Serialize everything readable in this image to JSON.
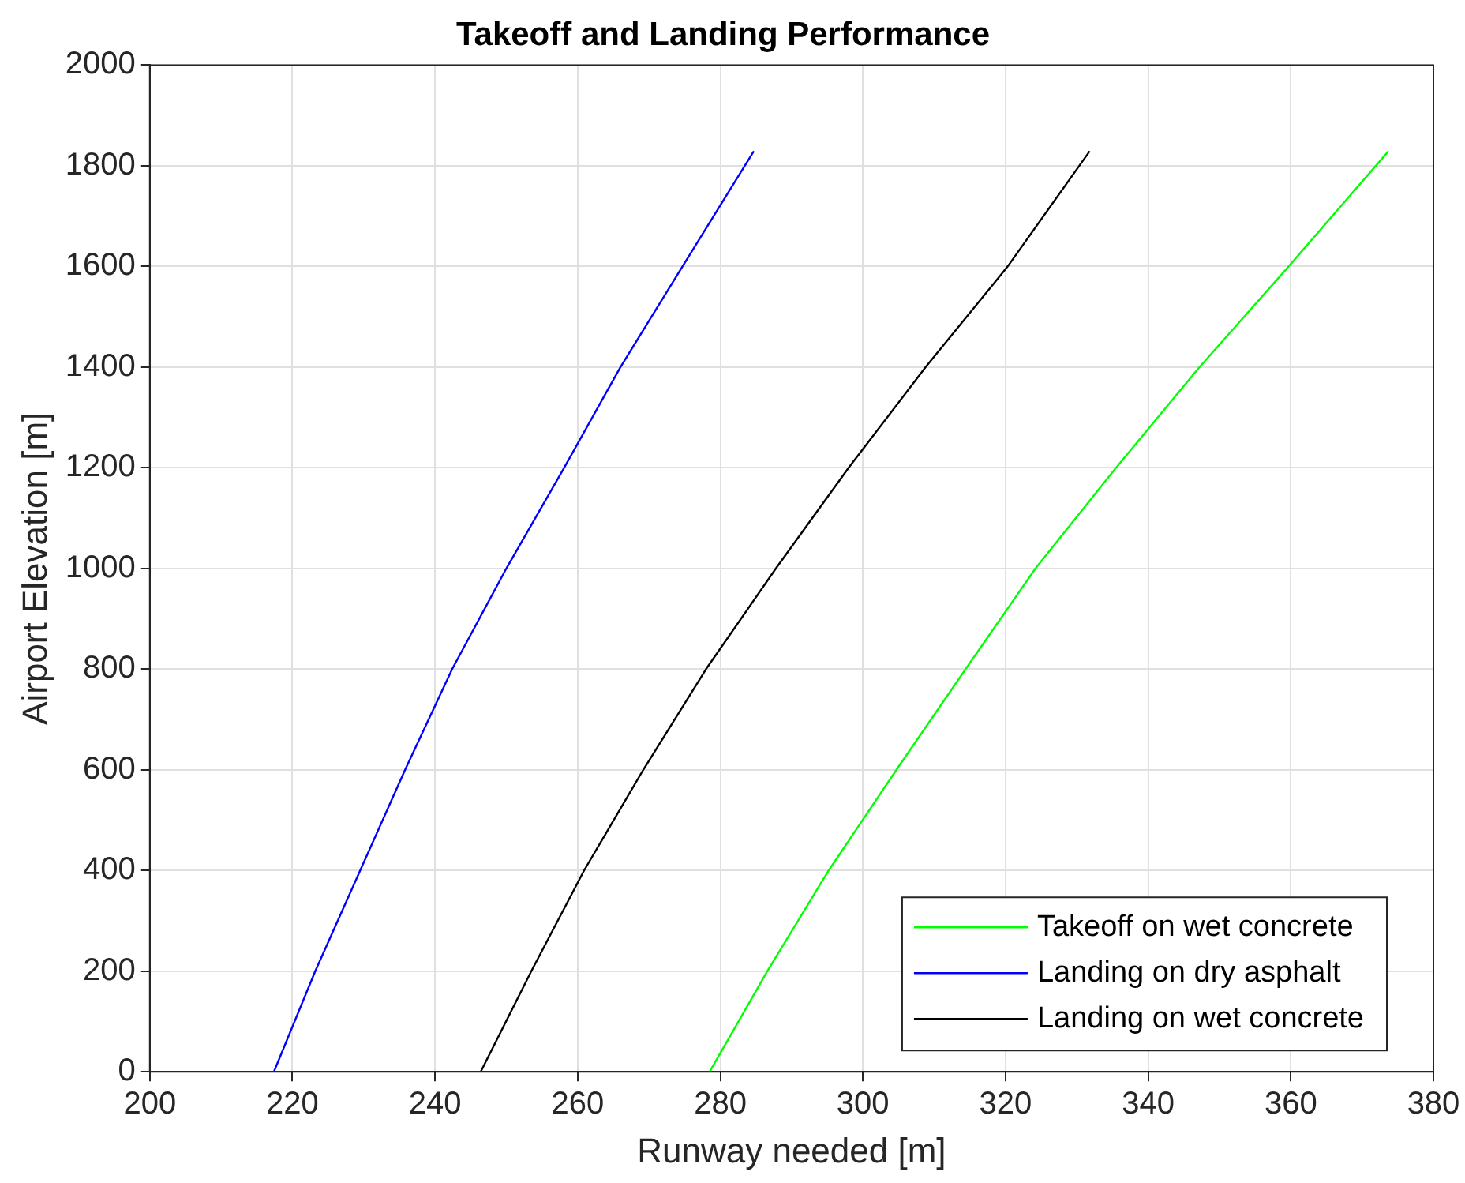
{
  "chart_data": {
    "type": "line",
    "title": "Takeoff and Landing Performance",
    "xlabel": "Runway needed [m]",
    "ylabel": "Airport Elevation [m]",
    "xlim": [
      200,
      380
    ],
    "xticks": [
      200,
      220,
      240,
      260,
      280,
      300,
      320,
      340,
      360,
      380
    ],
    "ylim": [
      0,
      2000
    ],
    "yticks": [
      0,
      200,
      400,
      600,
      800,
      1000,
      1200,
      1400,
      1600,
      1800,
      2000
    ],
    "grid": true,
    "legend": "bottom right",
    "marker": "none",
    "line_style": "solid",
    "series": [
      {
        "name": "Takeoff on wet concrete",
        "color": "#00ff00",
        "x": [
          278.5,
          286.6,
          295.2,
          304.7,
          314.4,
          324.2,
          335.5,
          347.2,
          359.7,
          373.7
        ],
        "values": [
          0,
          200,
          400,
          600,
          800,
          1000,
          1200,
          1400,
          1600,
          1829
        ]
      },
      {
        "name": "Landing on dry asphalt",
        "color": "#0000ff",
        "x": [
          217.4,
          223.2,
          229.5,
          235.8,
          242.4,
          250.0,
          258.1,
          266.0,
          274.7,
          284.7
        ],
        "values": [
          0,
          200,
          400,
          600,
          800,
          1000,
          1200,
          1400,
          1600,
          1829
        ]
      },
      {
        "name": "Landing on wet concrete",
        "color": "#000000",
        "x": [
          246.4,
          253.5,
          260.9,
          269.2,
          278.0,
          287.8,
          298.0,
          308.8,
          320.3,
          331.8
        ],
        "values": [
          0,
          200,
          400,
          600,
          800,
          1000,
          1200,
          1400,
          1600,
          1829
        ]
      }
    ]
  }
}
